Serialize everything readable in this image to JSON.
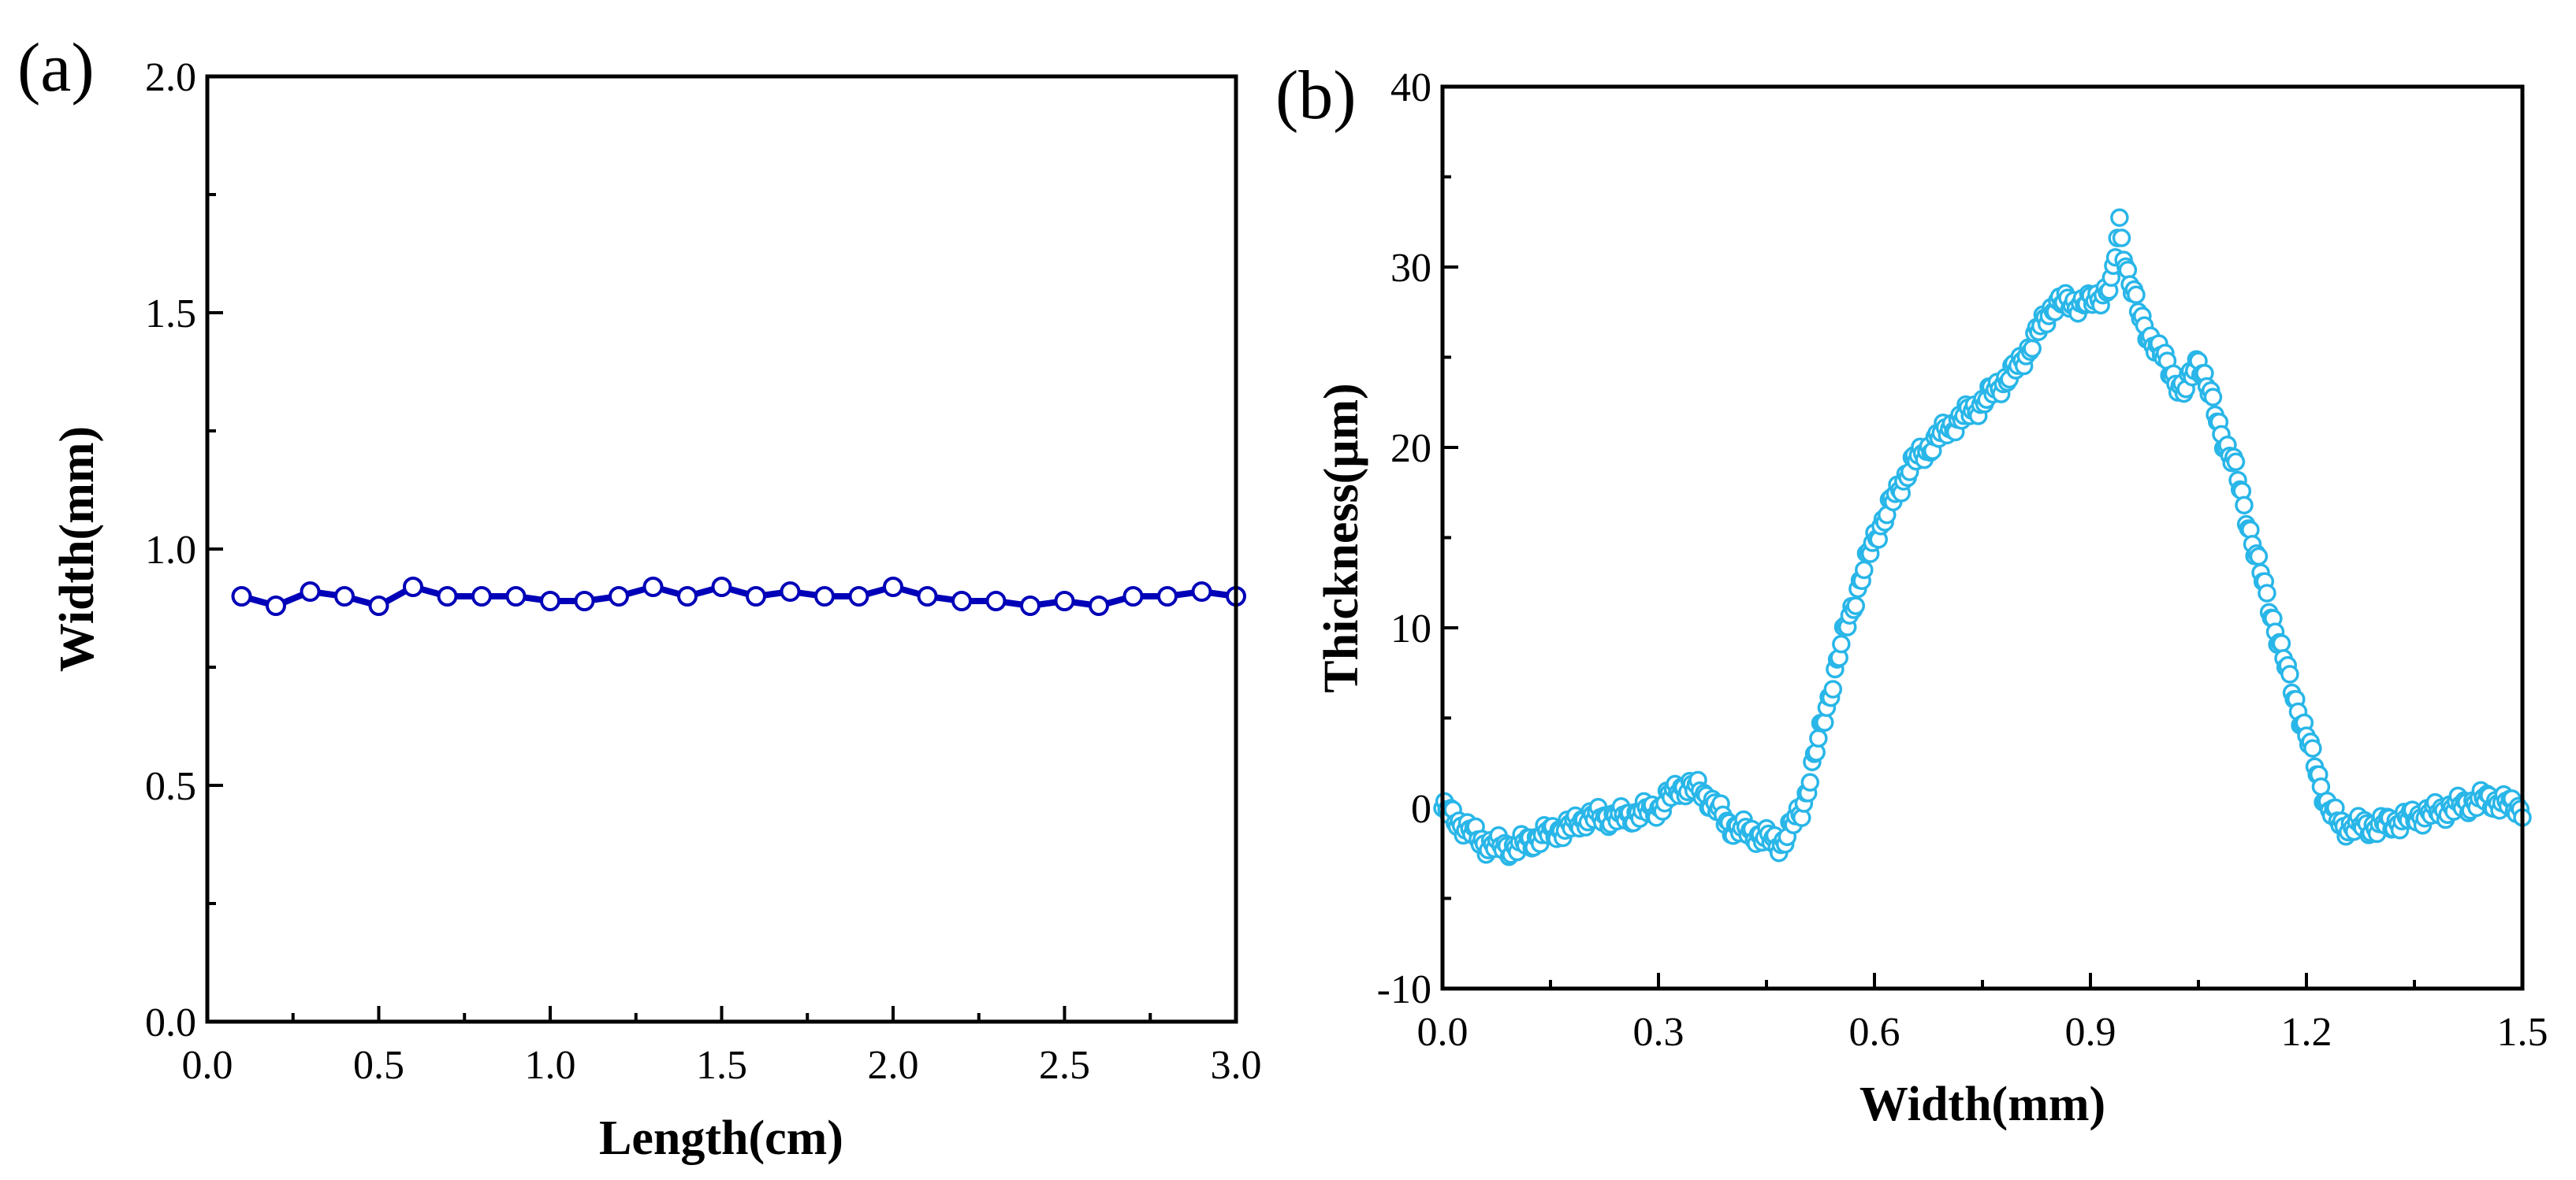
{
  "chart_data": [
    {
      "panel_label": "(a)",
      "type": "line",
      "xlabel": "Length(cm)",
      "ylabel": "Width(mm)",
      "xlim": [
        0.0,
        3.0
      ],
      "ylim": [
        0.0,
        2.0
      ],
      "xticks": [
        "0.0",
        "0.5",
        "1.0",
        "1.5",
        "2.0",
        "2.5",
        "3.0"
      ],
      "yticks": [
        "0.0",
        "0.5",
        "1.0",
        "1.5",
        "2.0"
      ],
      "xtick_values": [
        0.0,
        0.5,
        1.0,
        1.5,
        2.0,
        2.5,
        3.0
      ],
      "ytick_values": [
        0.0,
        0.5,
        1.0,
        1.5,
        2.0
      ],
      "grid": false,
      "color": "#0000b8",
      "series": [
        {
          "name": "Width",
          "x": [
            0.1,
            0.2,
            0.3,
            0.4,
            0.5,
            0.6,
            0.7,
            0.8,
            0.9,
            1.0,
            1.1,
            1.2,
            1.3,
            1.4,
            1.5,
            1.6,
            1.7,
            1.8,
            1.9,
            2.0,
            2.1,
            2.2,
            2.3,
            2.4,
            2.5,
            2.6,
            2.7,
            2.8,
            2.9,
            3.0
          ],
          "y": [
            0.9,
            0.88,
            0.91,
            0.9,
            0.88,
            0.92,
            0.9,
            0.9,
            0.9,
            0.89,
            0.89,
            0.9,
            0.92,
            0.9,
            0.92,
            0.9,
            0.91,
            0.9,
            0.9,
            0.92,
            0.9,
            0.89,
            0.89,
            0.88,
            0.89,
            0.88,
            0.9,
            0.9,
            0.91,
            0.9
          ]
        }
      ]
    },
    {
      "panel_label": "(b)",
      "type": "scatter",
      "xlabel": "Width(mm)",
      "ylabel": "Thickness(μm)",
      "xlim": [
        0.0,
        1.5
      ],
      "ylim": [
        -10,
        40
      ],
      "xticks": [
        "0.0",
        "0.3",
        "0.6",
        "0.9",
        "1.2",
        "1.5"
      ],
      "yticks": [
        "-10",
        "0",
        "10",
        "20",
        "30",
        "40"
      ],
      "xtick_values": [
        0.0,
        0.3,
        0.6,
        0.9,
        1.2,
        1.5
      ],
      "ytick_values": [
        -10,
        0,
        10,
        20,
        30,
        40
      ],
      "grid": false,
      "color": "#29b6e8",
      "profile_x": [
        0.0,
        0.03,
        0.06,
        0.1,
        0.14,
        0.18,
        0.2,
        0.25,
        0.3,
        0.33,
        0.36,
        0.4,
        0.44,
        0.47,
        0.5,
        0.53,
        0.56,
        0.6,
        0.65,
        0.7,
        0.75,
        0.8,
        0.85,
        0.9,
        0.93,
        0.94,
        0.95,
        0.97,
        1.0,
        1.03,
        1.05,
        1.08,
        1.1,
        1.13,
        1.17,
        1.2,
        1.23,
        1.25,
        1.3,
        1.35,
        1.4,
        1.45,
        1.5
      ],
      "profile_y": [
        0,
        -1,
        -2,
        -2.2,
        -1.5,
        -1,
        -0.5,
        -0.5,
        0,
        1.2,
        1,
        -1,
        -1.5,
        -2,
        0,
        5,
        10,
        15,
        19,
        21,
        22.5,
        24.5,
        28,
        28,
        29,
        32.5,
        30,
        27,
        25,
        23,
        25,
        21,
        19,
        14,
        8,
        4,
        0,
        -1,
        -1,
        -0.5,
        0,
        0.5,
        0
      ]
    }
  ]
}
